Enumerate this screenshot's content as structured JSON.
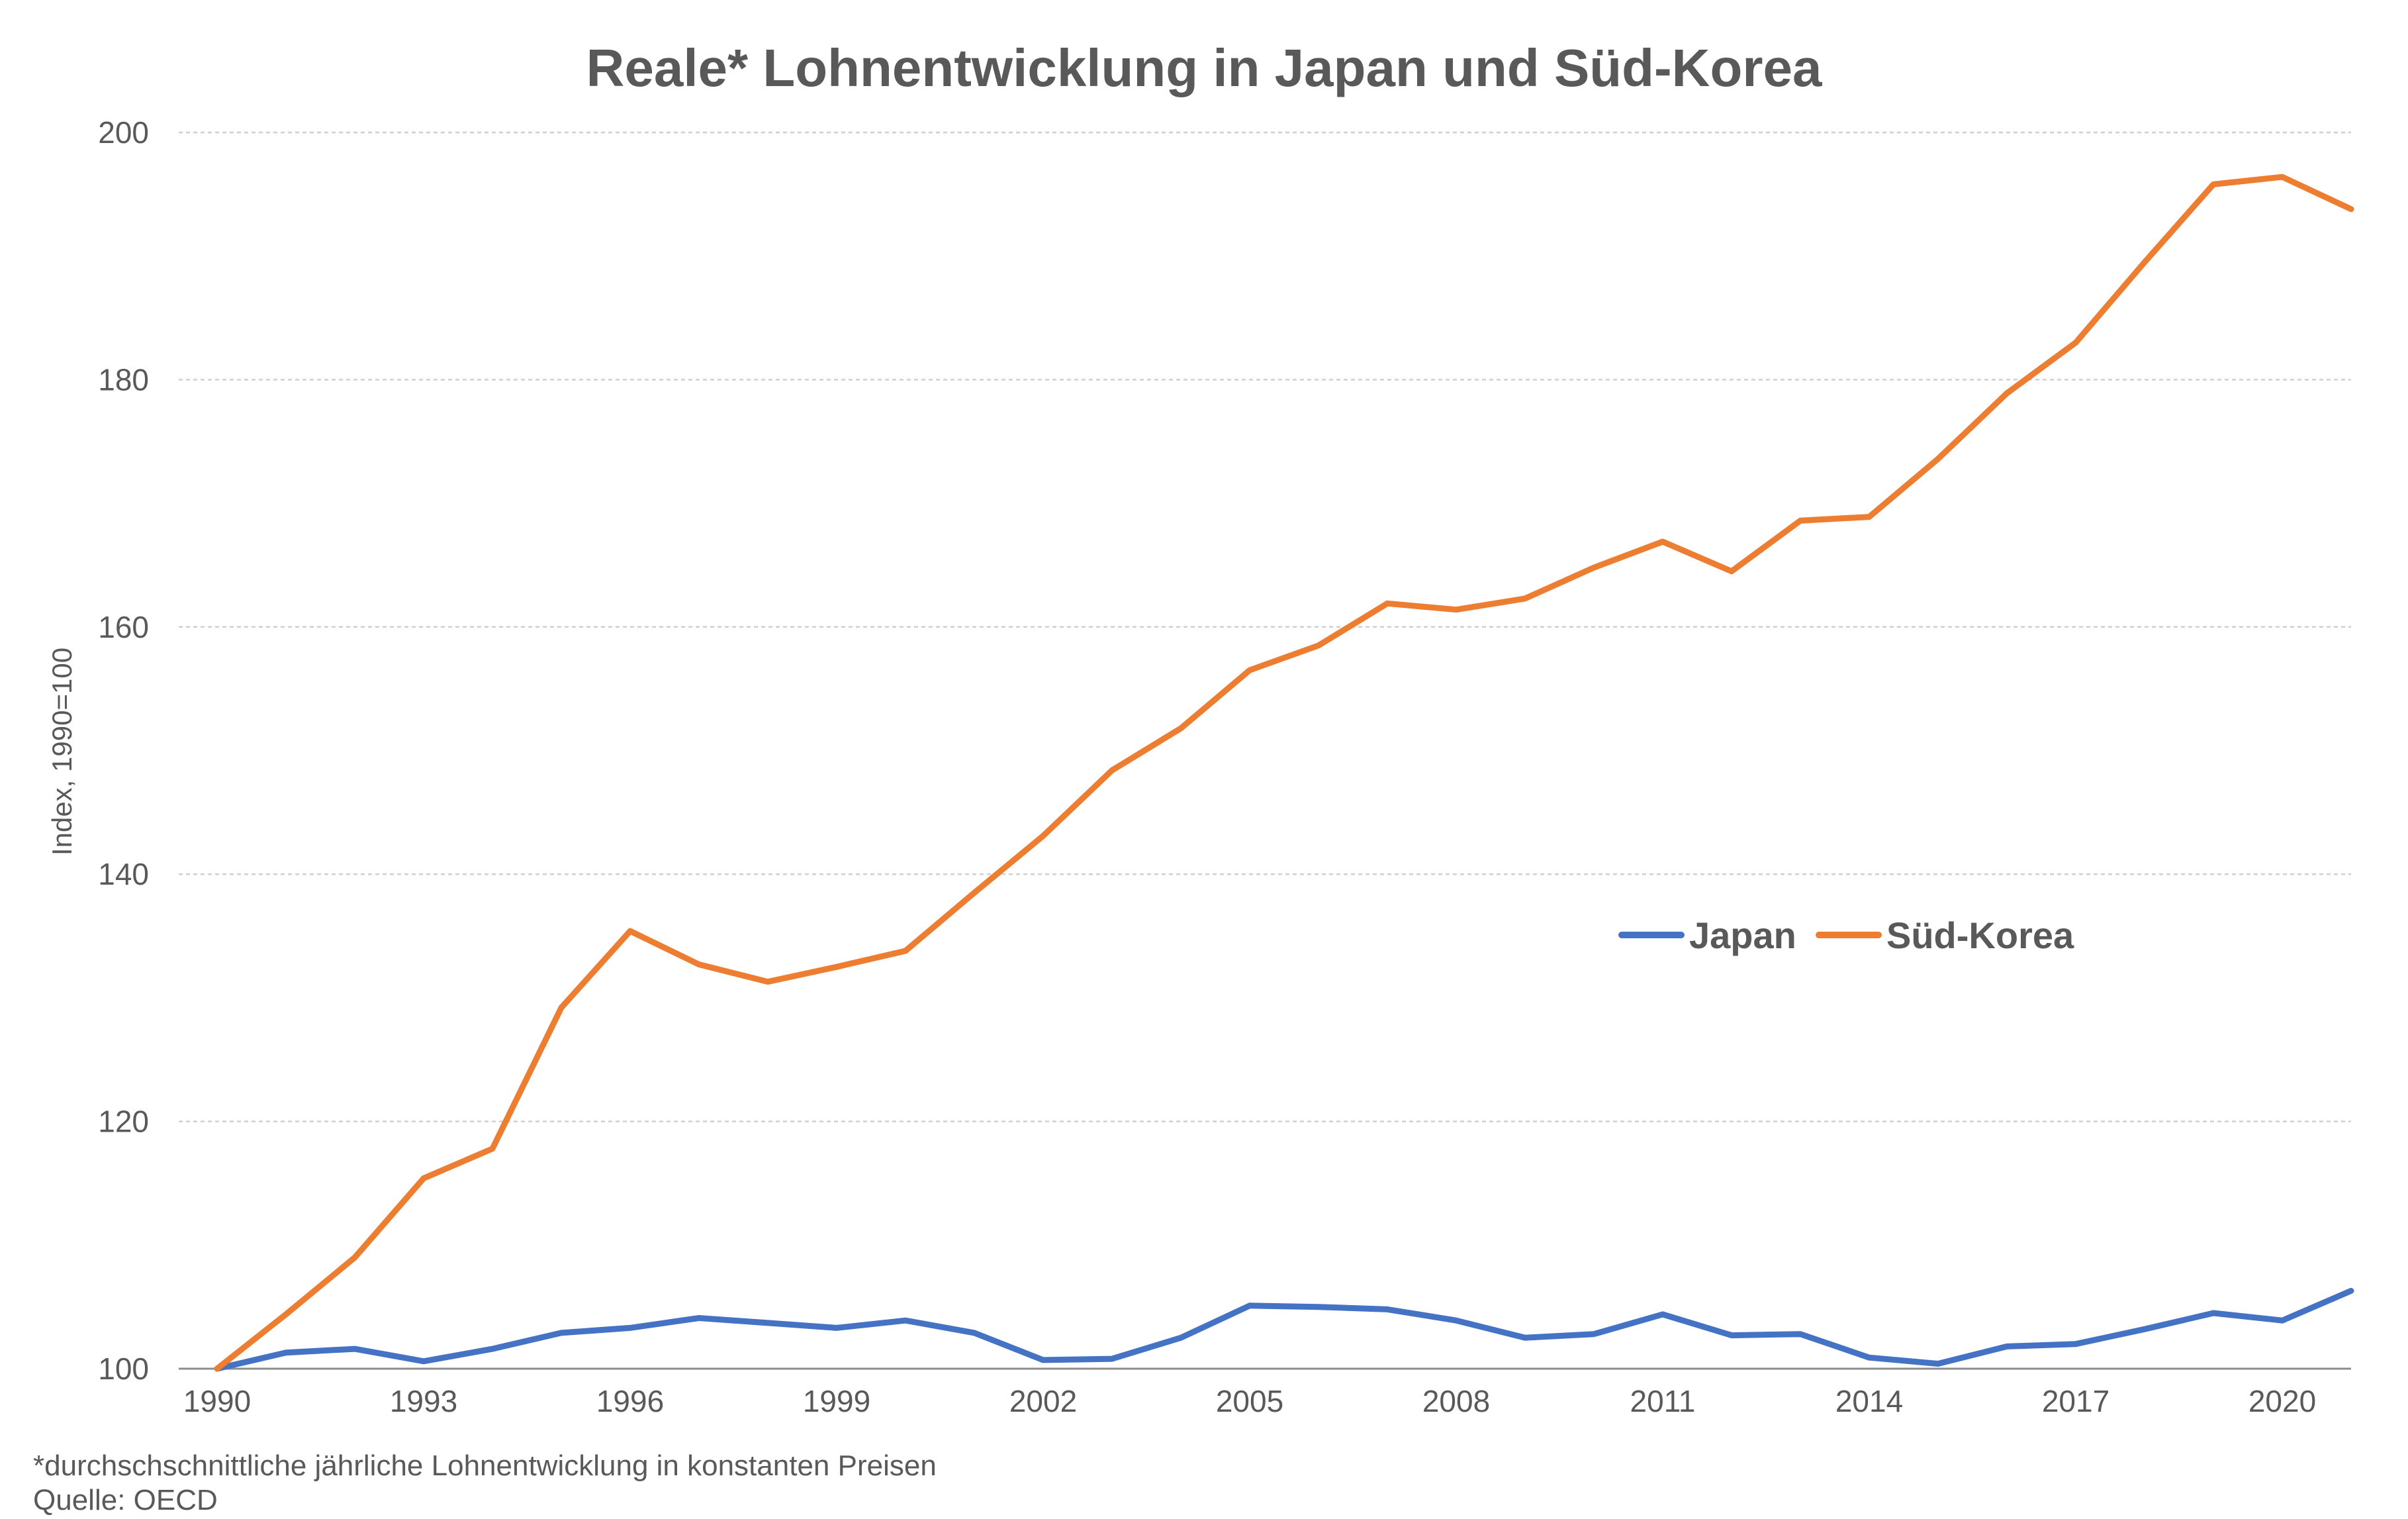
{
  "chart_data": {
    "type": "line",
    "title": "Reale* Lohnentwicklung in Japan und Süd-Korea",
    "ylabel": "Index, 1990=100",
    "xlabel": "",
    "ylim": [
      100,
      200
    ],
    "yticks": [
      100,
      120,
      140,
      160,
      180,
      200
    ],
    "xlim": [
      1990,
      2021
    ],
    "xticks": [
      1990,
      1993,
      1996,
      1999,
      2002,
      2005,
      2008,
      2011,
      2014,
      2017,
      2020
    ],
    "grid": true,
    "legend_position": "center-right",
    "x": [
      1990,
      1991,
      1992,
      1993,
      1994,
      1995,
      1996,
      1997,
      1998,
      1999,
      2000,
      2001,
      2002,
      2003,
      2004,
      2005,
      2006,
      2007,
      2008,
      2009,
      2010,
      2011,
      2012,
      2013,
      2014,
      2015,
      2016,
      2017,
      2018,
      2019,
      2020,
      2021
    ],
    "series": [
      {
        "name": "Japan",
        "color": "#4472c4",
        "values": [
          100.0,
          101.3,
          101.6,
          100.6,
          101.6,
          102.9,
          103.3,
          104.1,
          103.7,
          103.3,
          103.9,
          102.9,
          100.7,
          100.8,
          102.5,
          105.1,
          105.0,
          104.8,
          103.9,
          102.5,
          102.8,
          104.4,
          102.7,
          102.8,
          100.9,
          100.4,
          101.8,
          102.0,
          103.2,
          104.5,
          103.9,
          106.3
        ]
      },
      {
        "name": "Süd-Korea",
        "color": "#ed7d31",
        "values": [
          100.0,
          104.4,
          109.0,
          115.4,
          117.8,
          129.2,
          135.4,
          132.7,
          131.3,
          132.5,
          133.8,
          138.5,
          143.1,
          148.4,
          151.8,
          156.5,
          158.5,
          161.9,
          161.4,
          162.3,
          164.8,
          166.9,
          164.5,
          168.6,
          168.9,
          173.6,
          178.9,
          183.0,
          189.5,
          195.8,
          196.4,
          193.8
        ]
      }
    ],
    "footnote": "*durchschschnittliche jährliche Lohnentwicklung in konstanten Preisen",
    "source": "Quelle: OECD"
  }
}
